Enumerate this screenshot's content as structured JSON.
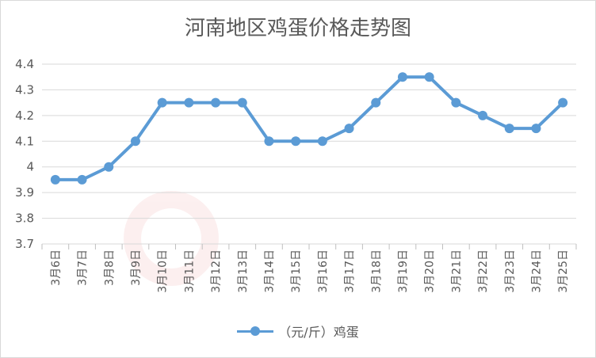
{
  "chart_data": {
    "type": "line",
    "title": "河南地区鸡蛋价格走势图",
    "categories": [
      "3月6日",
      "3月7日",
      "3月8日",
      "3月9日",
      "3月10日",
      "3月11日",
      "3月12日",
      "3月13日",
      "3月14日",
      "3月15日",
      "3月16日",
      "3月17日",
      "3月18日",
      "3月19日",
      "3月20日",
      "3月21日",
      "3月22日",
      "3月23日",
      "3月24日",
      "3月25日"
    ],
    "series": [
      {
        "name": "（元/斤）鸡蛋",
        "values": [
          3.95,
          3.95,
          4.0,
          4.1,
          4.25,
          4.25,
          4.25,
          4.25,
          4.1,
          4.1,
          4.1,
          4.15,
          4.25,
          4.35,
          4.35,
          4.25,
          4.2,
          4.15,
          4.15,
          4.25
        ]
      }
    ],
    "yticks": [
      "3.7",
      "3.8",
      "3.9",
      "4",
      "4.1",
      "4.2",
      "4.3",
      "4.4"
    ],
    "ylim": [
      3.7,
      4.4
    ],
    "grid": true,
    "legend": "bottom",
    "color": "#5b9bd5"
  }
}
